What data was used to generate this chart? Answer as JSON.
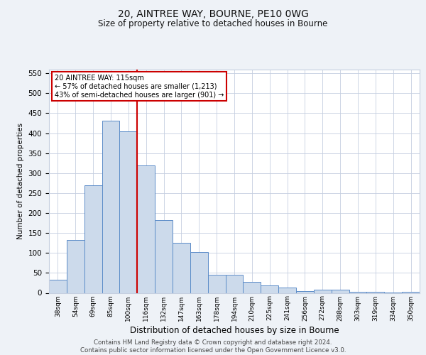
{
  "title1": "20, AINTREE WAY, BOURNE, PE10 0WG",
  "title2": "Size of property relative to detached houses in Bourne",
  "xlabel": "Distribution of detached houses by size in Bourne",
  "ylabel": "Number of detached properties",
  "categories": [
    "38sqm",
    "54sqm",
    "69sqm",
    "85sqm",
    "100sqm",
    "116sqm",
    "132sqm",
    "147sqm",
    "163sqm",
    "178sqm",
    "194sqm",
    "210sqm",
    "225sqm",
    "241sqm",
    "256sqm",
    "272sqm",
    "288sqm",
    "303sqm",
    "319sqm",
    "334sqm",
    "350sqm"
  ],
  "values": [
    33,
    133,
    270,
    432,
    405,
    320,
    183,
    125,
    103,
    46,
    46,
    28,
    18,
    14,
    5,
    8,
    8,
    2,
    2,
    1,
    2
  ],
  "bar_color": "#ccdaeb",
  "bar_edge_color": "#5b8cc8",
  "vline_color": "#cc0000",
  "annotation_title": "20 AINTREE WAY: 115sqm",
  "annotation_line1": "← 57% of detached houses are smaller (1,213)",
  "annotation_line2": "43% of semi-detached houses are larger (901) →",
  "ylim": [
    0,
    560
  ],
  "yticks": [
    0,
    50,
    100,
    150,
    200,
    250,
    300,
    350,
    400,
    450,
    500,
    550
  ],
  "footer1": "Contains HM Land Registry data © Crown copyright and database right 2024.",
  "footer2": "Contains public sector information licensed under the Open Government Licence v3.0.",
  "bg_color": "#eef2f7",
  "plot_bg_color": "#ffffff",
  "grid_color": "#c5cfe0"
}
